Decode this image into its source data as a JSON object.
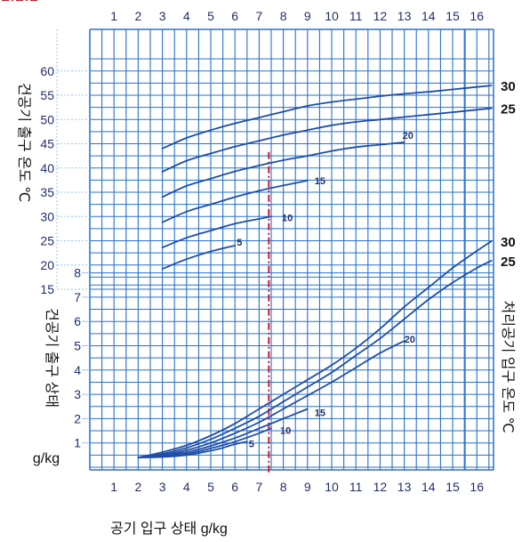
{
  "chart_data": {
    "type": "line",
    "grid": true,
    "xlabel": "공기 입구 상태 g/kg",
    "x_ticks": [
      "1",
      "2",
      "3",
      "4",
      "5",
      "6",
      "7",
      "8",
      "9",
      "10",
      "11",
      "12",
      "13",
      "14",
      "15",
      "16"
    ],
    "xlim": [
      0,
      16.6
    ],
    "colors": {
      "curve": "#1f4ea8",
      "grid": "#2a72c8",
      "guide": "#cc1a2a"
    },
    "upper_panel": {
      "ylabel": "건공기 출구 온도 ℃",
      "y_ticks": [
        "15",
        "20",
        "25",
        "30",
        "35",
        "40",
        "45",
        "50",
        "55",
        "60"
      ],
      "ylim": [
        15,
        62
      ],
      "edge_labels": [
        {
          "text": "30",
          "y": 57
        },
        {
          "text": "25",
          "y": 52.3
        }
      ],
      "series": [
        {
          "name": "30",
          "x": [
            3,
            4,
            5,
            6,
            7,
            8,
            9,
            10,
            11,
            12,
            13,
            14,
            15,
            16,
            16.6
          ],
          "y": [
            44,
            46.2,
            47.8,
            49.2,
            50.4,
            51.6,
            52.8,
            53.6,
            54.2,
            54.8,
            55.3,
            55.7,
            56.2,
            56.7,
            57
          ]
        },
        {
          "name": "25",
          "x": [
            3,
            4,
            5,
            6,
            7,
            8,
            9,
            10,
            11,
            12,
            13,
            14,
            15,
            16,
            16.6
          ],
          "y": [
            39.2,
            41.5,
            43,
            44.4,
            45.6,
            46.8,
            47.8,
            48.8,
            49.5,
            50,
            50.5,
            51,
            51.5,
            52,
            52.3
          ]
        },
        {
          "name": "20",
          "label": "20",
          "x": [
            3,
            4,
            5,
            6,
            7,
            8,
            9,
            10,
            11,
            12,
            13
          ],
          "y": [
            34,
            36.3,
            37.8,
            39.3,
            40.5,
            41.6,
            42.5,
            43.5,
            44.3,
            44.8,
            45.3
          ]
        },
        {
          "name": "15",
          "label": "15",
          "x": [
            3,
            4,
            5,
            6,
            7,
            8,
            9
          ],
          "y": [
            28.8,
            31,
            32.5,
            34,
            35.3,
            36.4,
            37.4
          ]
        },
        {
          "name": "10",
          "label": "10",
          "x": [
            3,
            4,
            5,
            6,
            7,
            7.5
          ],
          "y": [
            23.6,
            25.6,
            27.1,
            28.5,
            29.5,
            30
          ]
        },
        {
          "name": "5",
          "label": "5",
          "x": [
            3,
            4,
            5,
            6
          ],
          "y": [
            19.2,
            21.2,
            22.8,
            24
          ]
        }
      ],
      "guide": {
        "x": 7.4,
        "y": 43.3
      }
    },
    "lower_panel": {
      "ylabel": "건공기 출구 상태",
      "yunit": "g/kg",
      "y_ticks": [
        "1",
        "2",
        "3",
        "4",
        "5",
        "6",
        "7",
        "8"
      ],
      "ylim": [
        0,
        8.5
      ],
      "edge_labels": [
        {
          "text": "30",
          "y": 9.3
        },
        {
          "text": "25",
          "y": 8.5
        }
      ],
      "right_label": "처리공기 입구 온도 ℃",
      "series": [
        {
          "name": "30",
          "x": [
            2,
            3,
            4,
            5,
            6,
            7,
            8,
            9,
            10,
            11,
            12,
            13,
            14,
            15,
            16,
            16.6
          ],
          "y": [
            0.4,
            0.62,
            0.9,
            1.3,
            1.8,
            2.4,
            3.0,
            3.6,
            4.2,
            4.9,
            5.7,
            6.6,
            7.4,
            8.2,
            8.9,
            9.3
          ]
        },
        {
          "name": "25",
          "x": [
            2,
            3,
            4,
            5,
            6,
            7,
            8,
            9,
            10,
            11,
            12,
            13,
            14,
            15,
            16,
            16.6
          ],
          "y": [
            0.4,
            0.55,
            0.8,
            1.15,
            1.6,
            2.1,
            2.7,
            3.3,
            3.9,
            4.6,
            5.3,
            6.1,
            6.9,
            7.6,
            8.2,
            8.5
          ]
        },
        {
          "name": "20",
          "label": "20",
          "x": [
            2,
            3,
            4,
            5,
            6,
            7,
            8,
            9,
            10,
            11,
            12,
            13
          ],
          "y": [
            0.4,
            0.5,
            0.7,
            1.0,
            1.4,
            1.85,
            2.4,
            2.95,
            3.5,
            4.1,
            4.7,
            5.2
          ]
        },
        {
          "name": "15",
          "label": "15",
          "x": [
            2,
            3,
            4,
            5,
            6,
            7,
            8,
            8.5,
            9
          ],
          "y": [
            0.4,
            0.48,
            0.62,
            0.88,
            1.2,
            1.6,
            2.0,
            2.2,
            2.4
          ]
        },
        {
          "name": "10",
          "label": "10",
          "x": [
            2,
            3,
            4,
            5,
            6,
            7,
            7.5
          ],
          "y": [
            0.4,
            0.45,
            0.55,
            0.78,
            1.05,
            1.4,
            1.6
          ]
        },
        {
          "name": "5",
          "label": "5",
          "x": [
            2,
            3,
            4,
            5,
            5.5,
            6,
            6.5
          ],
          "y": [
            0.4,
            0.42,
            0.5,
            0.68,
            0.8,
            0.95,
            1.05
          ]
        }
      ],
      "guide": {
        "x": 7.4,
        "y": 2
      }
    }
  }
}
